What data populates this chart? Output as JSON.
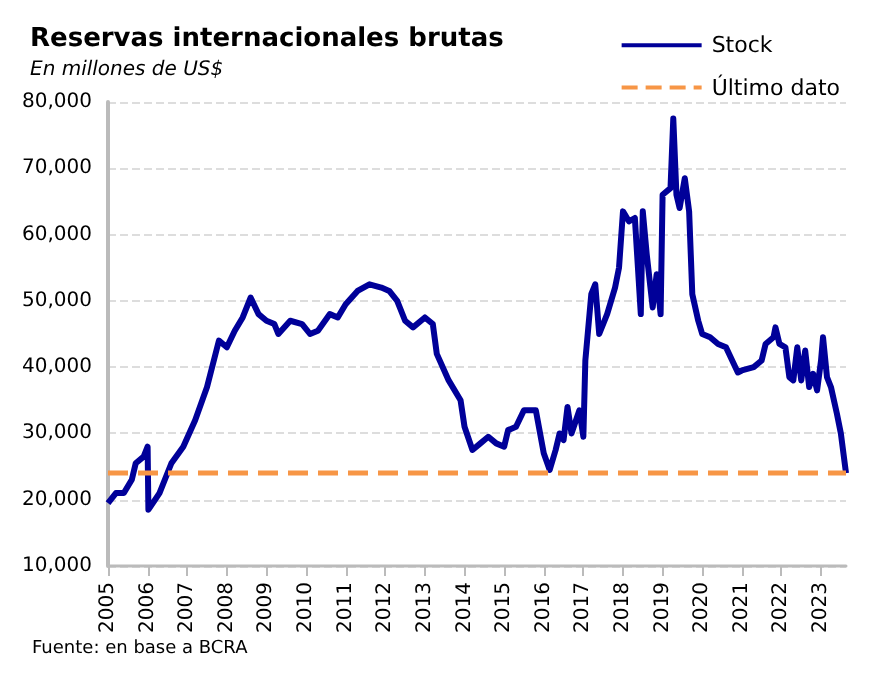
{
  "chart_data": {
    "type": "line",
    "title": "Reservas internacionales brutas",
    "subtitle": "En millones de US$",
    "x": [
      2005.0,
      2005.2,
      2005.4,
      2005.6,
      2005.7,
      2005.9,
      2006.0,
      2006.02,
      2006.3,
      2006.6,
      2006.9,
      2007.2,
      2007.5,
      2007.8,
      2008.0,
      2008.2,
      2008.4,
      2008.6,
      2008.8,
      2009.0,
      2009.2,
      2009.3,
      2009.6,
      2009.9,
      2010.1,
      2010.3,
      2010.6,
      2010.8,
      2011.0,
      2011.3,
      2011.6,
      2011.9,
      2012.1,
      2012.3,
      2012.5,
      2012.7,
      2013.0,
      2013.2,
      2013.3,
      2013.6,
      2013.9,
      2014.0,
      2014.2,
      2014.4,
      2014.6,
      2014.8,
      2015.0,
      2015.1,
      2015.3,
      2015.5,
      2015.8,
      2016.0,
      2016.15,
      2016.3,
      2016.4,
      2016.5,
      2016.6,
      2016.7,
      2016.9,
      2017.0,
      2017.05,
      2017.2,
      2017.3,
      2017.4,
      2017.6,
      2017.8,
      2017.9,
      2018.0,
      2018.15,
      2018.3,
      2018.45,
      2018.5,
      2018.6,
      2018.75,
      2018.85,
      2018.95,
      2019.0,
      2019.2,
      2019.27,
      2019.35,
      2019.43,
      2019.56,
      2019.67,
      2019.75,
      2019.9,
      2020.0,
      2020.2,
      2020.4,
      2020.6,
      2020.9,
      2021.0,
      2021.3,
      2021.5,
      2021.6,
      2021.8,
      2021.85,
      2021.95,
      2022.1,
      2022.2,
      2022.3,
      2022.4,
      2022.5,
      2022.6,
      2022.7,
      2022.8,
      2022.9,
      2023.0,
      2023.05,
      2023.15,
      2023.25,
      2023.4,
      2023.5,
      2023.63
    ],
    "series": [
      {
        "name": "Stock",
        "color": "#000099",
        "values": [
          19500,
          21000,
          21000,
          23000,
          25500,
          26500,
          28000,
          18500,
          21000,
          25500,
          28000,
          32000,
          37000,
          44000,
          43000,
          45500,
          47500,
          50500,
          48000,
          47000,
          46500,
          45000,
          47000,
          46500,
          45000,
          45500,
          48000,
          47500,
          49500,
          51500,
          52500,
          52000,
          51500,
          50000,
          47000,
          46000,
          47500,
          46500,
          42000,
          38000,
          35000,
          31000,
          27500,
          28500,
          29500,
          28500,
          28000,
          30500,
          31000,
          33500,
          33500,
          27000,
          24500,
          27500,
          30000,
          29000,
          34000,
          30000,
          33500,
          29500,
          41000,
          51000,
          52500,
          45000,
          48000,
          52000,
          55000,
          63500,
          62000,
          62500,
          48000,
          63500,
          57000,
          49000,
          54000,
          48000,
          66000,
          67000,
          77500,
          66000,
          64000,
          68500,
          63500,
          51000,
          47000,
          45000,
          44500,
          43500,
          43000,
          39200,
          39500,
          40000,
          41000,
          43500,
          44500,
          46000,
          43500,
          43000,
          38500,
          38000,
          43000,
          38000,
          42500,
          37000,
          39000,
          36500,
          41000,
          44500,
          38500,
          37000,
          33000,
          30000,
          24000
        ]
      }
    ],
    "xlim": [
      2005,
      2023.63
    ],
    "xticks": [
      2005,
      2006,
      2007,
      2008,
      2009,
      2010,
      2011,
      2012,
      2013,
      2014,
      2015,
      2016,
      2017,
      2018,
      2019,
      2020,
      2021,
      2022,
      2023
    ],
    "ylim": [
      10000,
      80000
    ],
    "yticks": [
      {
        "value": 10000,
        "label": "10,000"
      },
      {
        "value": 20000,
        "label": "20,000"
      },
      {
        "value": 30000,
        "label": "30,000"
      },
      {
        "value": 40000,
        "label": "40,000"
      },
      {
        "value": 50000,
        "label": "50,000"
      },
      {
        "value": 60000,
        "label": "60,000"
      },
      {
        "value": 70000,
        "label": "70,000"
      },
      {
        "value": 80000,
        "label": "80,000"
      }
    ],
    "ref_lines": [
      {
        "axis": "y",
        "value": 24000,
        "label": "Último dato",
        "color": "#f79646",
        "line_style": "dashed"
      }
    ],
    "grid": "y",
    "legend": "top right",
    "marker": "none",
    "line_style": "solid",
    "annotations": [
      "Fuente: en base a BCRA"
    ]
  }
}
